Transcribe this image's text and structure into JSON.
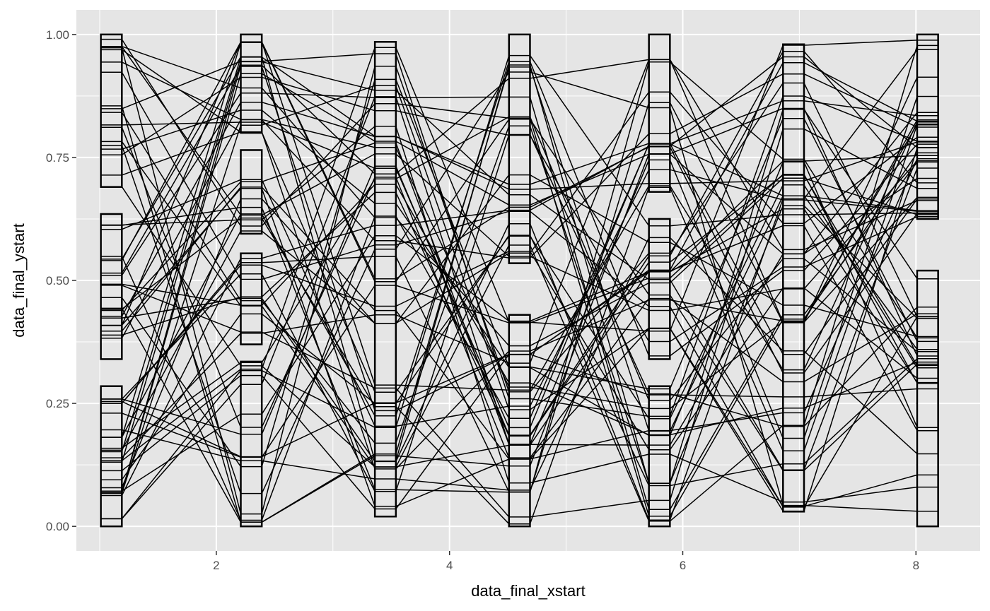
{
  "chart_data": {
    "type": "line",
    "subtype": "parallel-sets",
    "xlabel": "data_final_xstart",
    "ylabel": "data_final_ystart",
    "xlim": [
      0.8,
      8.55
    ],
    "ylim": [
      -0.05,
      1.05
    ],
    "x_ticks": [
      2,
      4,
      6,
      8
    ],
    "x_tick_labels": [
      "2",
      "4",
      "6",
      "8"
    ],
    "y_ticks": [
      0,
      0.25,
      0.5,
      0.75,
      1
    ],
    "y_tick_labels": [
      "0.00",
      "0.25",
      "0.50",
      "0.75",
      "1.00"
    ],
    "grid": true,
    "legend": "none",
    "colors": {
      "panel": "#e5e5e5",
      "grid": "#ffffff",
      "line": "#000000",
      "box_fill": "#ffffff"
    },
    "axes_x": [
      1.1,
      2.3,
      3.45,
      4.6,
      5.8,
      6.95,
      8.1
    ],
    "axis_box_width": 0.18,
    "axis_groups": [
      [
        [
          0.69,
          1.0
        ],
        [
          0.34,
          0.635
        ],
        [
          0.0,
          0.285
        ]
      ],
      [
        [
          0.8,
          1.0
        ],
        [
          0.595,
          0.765
        ],
        [
          0.37,
          0.555
        ],
        [
          0.0,
          0.335
        ]
      ],
      [
        [
          0.02,
          0.985
        ]
      ],
      [
        [
          0.535,
          1.0
        ],
        [
          0.0,
          0.43
        ]
      ],
      [
        [
          0.68,
          1.0
        ],
        [
          0.34,
          0.625
        ],
        [
          0.0,
          0.285
        ]
      ],
      [
        [
          0.03,
          0.98
        ]
      ],
      [
        [
          0.625,
          1.0
        ],
        [
          0.0,
          0.52
        ]
      ]
    ],
    "n_lines": 64
  }
}
